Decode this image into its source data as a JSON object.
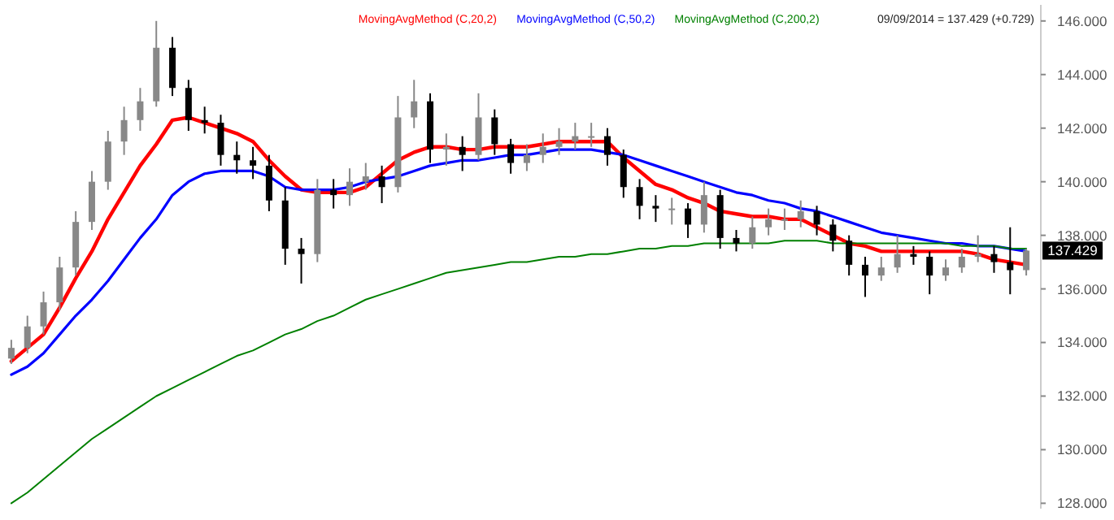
{
  "chart_data": {
    "type": "candlestick",
    "categories": [
      null,
      null,
      null,
      null,
      null,
      null,
      null,
      null,
      null,
      null,
      null,
      null,
      null,
      null,
      null,
      null,
      null,
      null,
      null,
      null,
      null,
      null,
      null,
      null,
      null,
      null,
      null,
      null,
      null,
      null,
      null,
      null,
      null,
      null,
      null,
      null,
      null,
      null,
      null,
      null,
      null,
      null,
      null,
      null,
      null,
      null,
      null,
      null,
      null,
      null,
      null,
      null,
      null,
      null,
      null,
      null,
      null,
      null,
      null,
      null,
      null,
      null,
      null,
      null
    ],
    "ohlc": [
      [
        133.4,
        134.1,
        133.2,
        133.8
      ],
      [
        133.8,
        135.0,
        133.6,
        134.6
      ],
      [
        134.6,
        135.9,
        134.3,
        135.5
      ],
      [
        135.5,
        137.2,
        135.2,
        136.8
      ],
      [
        136.8,
        138.9,
        136.5,
        138.5
      ],
      [
        138.5,
        140.4,
        138.2,
        140.0
      ],
      [
        140.0,
        141.9,
        139.7,
        141.5
      ],
      [
        141.5,
        142.8,
        141.0,
        142.3
      ],
      [
        142.3,
        143.5,
        141.9,
        143.0
      ],
      [
        143.0,
        146.0,
        142.8,
        145.0
      ],
      [
        145.0,
        145.4,
        143.2,
        143.5
      ],
      [
        143.5,
        143.8,
        141.9,
        142.3
      ],
      [
        142.3,
        142.8,
        141.8,
        142.2
      ],
      [
        142.2,
        142.5,
        140.6,
        141.0
      ],
      [
        141.0,
        141.5,
        140.3,
        140.8
      ],
      [
        140.8,
        141.3,
        140.1,
        140.6
      ],
      [
        140.6,
        141.0,
        138.9,
        139.3
      ],
      [
        139.3,
        139.8,
        136.9,
        137.5
      ],
      [
        137.5,
        137.9,
        136.2,
        137.3
      ],
      [
        137.3,
        140.1,
        137.0,
        139.7
      ],
      [
        139.7,
        140.1,
        139.0,
        139.5
      ],
      [
        139.5,
        140.5,
        139.1,
        140.0
      ],
      [
        140.0,
        140.7,
        139.7,
        140.2
      ],
      [
        140.2,
        140.6,
        139.2,
        139.8
      ],
      [
        139.8,
        143.2,
        139.6,
        142.4
      ],
      [
        142.4,
        143.8,
        142.0,
        143.0
      ],
      [
        143.0,
        143.3,
        140.7,
        141.2
      ],
      [
        141.2,
        141.8,
        140.6,
        141.3
      ],
      [
        141.3,
        141.7,
        140.4,
        141.0
      ],
      [
        141.0,
        143.3,
        140.8,
        142.4
      ],
      [
        142.4,
        142.7,
        141.0,
        141.4
      ],
      [
        141.4,
        141.6,
        140.3,
        140.7
      ],
      [
        140.7,
        141.4,
        140.4,
        141.0
      ],
      [
        141.0,
        141.8,
        140.7,
        141.3
      ],
      [
        141.3,
        142.0,
        141.0,
        141.5
      ],
      [
        141.5,
        142.2,
        141.2,
        141.7
      ],
      [
        141.7,
        142.2,
        141.3,
        141.7
      ],
      [
        141.7,
        142.0,
        140.6,
        141.0
      ],
      [
        141.0,
        141.2,
        139.4,
        139.8
      ],
      [
        139.8,
        140.1,
        138.6,
        139.1
      ],
      [
        139.1,
        139.5,
        138.5,
        139.0
      ],
      [
        139.0,
        139.4,
        138.4,
        139.0
      ],
      [
        139.0,
        139.2,
        137.9,
        138.4
      ],
      [
        138.4,
        140.0,
        138.1,
        139.5
      ],
      [
        139.5,
        139.7,
        137.5,
        137.9
      ],
      [
        137.9,
        138.2,
        137.4,
        137.7
      ],
      [
        137.7,
        138.7,
        137.5,
        138.3
      ],
      [
        138.3,
        139.0,
        138.0,
        138.6
      ],
      [
        138.6,
        139.0,
        138.2,
        138.6
      ],
      [
        138.6,
        139.3,
        138.3,
        138.9
      ],
      [
        138.9,
        139.1,
        138.0,
        138.4
      ],
      [
        138.4,
        138.6,
        137.4,
        137.8
      ],
      [
        137.8,
        138.0,
        136.5,
        136.9
      ],
      [
        136.9,
        137.2,
        135.7,
        136.5
      ],
      [
        136.5,
        137.2,
        136.3,
        136.8
      ],
      [
        136.8,
        138.0,
        136.6,
        137.3
      ],
      [
        137.3,
        137.6,
        136.9,
        137.2
      ],
      [
        137.2,
        137.4,
        135.8,
        136.5
      ],
      [
        136.5,
        137.1,
        136.3,
        136.8
      ],
      [
        136.8,
        137.5,
        136.6,
        137.2
      ],
      [
        137.2,
        138.0,
        137.0,
        137.3
      ],
      [
        137.3,
        137.6,
        136.6,
        137.0
      ],
      [
        137.0,
        138.3,
        135.8,
        136.7
      ],
      [
        136.7,
        137.5,
        136.5,
        137.429
      ]
    ],
    "series": [
      {
        "name": "MovingAvgMethod (C,20,2)",
        "type": "line",
        "color": "#ff0000",
        "values": [
          133.3,
          133.8,
          134.3,
          135.3,
          136.4,
          137.4,
          138.6,
          139.6,
          140.6,
          141.4,
          142.3,
          142.4,
          142.2,
          142.0,
          141.8,
          141.5,
          140.8,
          140.2,
          139.7,
          139.6,
          139.6,
          139.6,
          139.8,
          140.3,
          140.8,
          141.1,
          141.3,
          141.3,
          141.2,
          141.2,
          141.3,
          141.3,
          141.3,
          141.4,
          141.5,
          141.5,
          141.5,
          141.5,
          140.9,
          140.4,
          139.9,
          139.7,
          139.4,
          139.2,
          138.9,
          138.8,
          138.7,
          138.7,
          138.6,
          138.6,
          138.3,
          138.0,
          137.7,
          137.6,
          137.4,
          137.4,
          137.4,
          137.4,
          137.4,
          137.4,
          137.3,
          137.1,
          137.0,
          136.9
        ]
      },
      {
        "name": "MovingAvgMethod (C,50,2)",
        "type": "line",
        "color": "#0000ff",
        "values": [
          132.8,
          133.1,
          133.6,
          134.3,
          135.0,
          135.6,
          136.3,
          137.1,
          137.9,
          138.6,
          139.5,
          140.0,
          140.3,
          140.4,
          140.4,
          140.4,
          140.2,
          139.8,
          139.7,
          139.7,
          139.7,
          139.8,
          140.0,
          140.1,
          140.2,
          140.4,
          140.6,
          140.7,
          140.8,
          140.8,
          140.9,
          141.0,
          141.0,
          141.1,
          141.2,
          141.2,
          141.2,
          141.1,
          141.0,
          140.8,
          140.6,
          140.4,
          140.2,
          140.0,
          139.8,
          139.6,
          139.5,
          139.3,
          139.2,
          139.0,
          138.9,
          138.7,
          138.5,
          138.3,
          138.1,
          138.0,
          137.9,
          137.8,
          137.7,
          137.7,
          137.6,
          137.6,
          137.5,
          137.4
        ]
      },
      {
        "name": "MovingAvgMethod (C,200,2)",
        "type": "line",
        "color": "#008000",
        "values": [
          128.0,
          128.4,
          128.9,
          129.4,
          129.9,
          130.4,
          130.8,
          131.2,
          131.6,
          132.0,
          132.3,
          132.6,
          132.9,
          133.2,
          133.5,
          133.7,
          134.0,
          134.3,
          134.5,
          134.8,
          135.0,
          135.3,
          135.6,
          135.8,
          136.0,
          136.2,
          136.4,
          136.6,
          136.7,
          136.8,
          136.9,
          137.0,
          137.0,
          137.1,
          137.2,
          137.2,
          137.3,
          137.3,
          137.4,
          137.5,
          137.5,
          137.6,
          137.6,
          137.7,
          137.7,
          137.7,
          137.7,
          137.7,
          137.8,
          137.8,
          137.8,
          137.7,
          137.7,
          137.7,
          137.7,
          137.7,
          137.7,
          137.7,
          137.7,
          137.6,
          137.6,
          137.6,
          137.5,
          137.5
        ]
      }
    ],
    "ylim": [
      127.8,
      146.6
    ],
    "yticks": [
      {
        "value": 128,
        "label": "128.000"
      },
      {
        "value": 130,
        "label": "130.000"
      },
      {
        "value": 132,
        "label": "132.000"
      },
      {
        "value": 134,
        "label": "134.000"
      },
      {
        "value": 136,
        "label": "136.000"
      },
      {
        "value": 138,
        "label": "138.000"
      },
      {
        "value": 140,
        "label": "140.000"
      },
      {
        "value": 142,
        "label": "142.000"
      },
      {
        "value": 144,
        "label": "144.000"
      },
      {
        "value": 146,
        "label": "146.000"
      }
    ],
    "legend": "top",
    "annotations": [
      "09/09/2014 = 137.429 (+0.729)",
      "137.429"
    ]
  }
}
